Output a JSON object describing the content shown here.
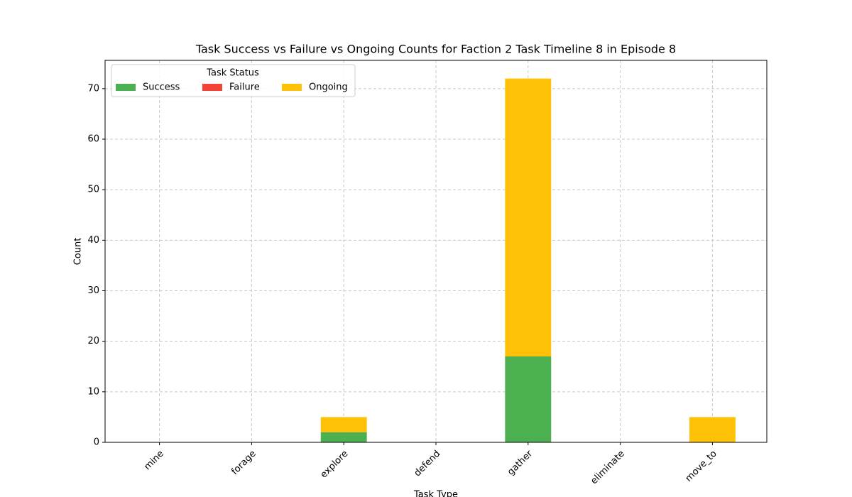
{
  "chart_data": {
    "type": "stacked_bar",
    "title": "Task Success vs Failure vs Ongoing Counts for Faction 2 Task Timeline 8 in Episode 8",
    "x_label": "Task Type",
    "y_label": "Count",
    "categories": [
      "mine",
      "forage",
      "explore",
      "defend",
      "gather",
      "eliminate",
      "move_to"
    ],
    "series": [
      {
        "name": "Success",
        "color": "#4caf50",
        "values": [
          0,
          0,
          2,
          0,
          17,
          0,
          0
        ]
      },
      {
        "name": "Failure",
        "color": "#f44336",
        "values": [
          0,
          0,
          0,
          0,
          0,
          0,
          0
        ]
      },
      {
        "name": "Ongoing",
        "color": "#ffc107",
        "values": [
          0,
          0,
          3,
          0,
          55,
          0,
          5
        ]
      }
    ],
    "ylim": [
      0,
      75.6
    ],
    "yticks": [
      0,
      10,
      20,
      30,
      40,
      50,
      60,
      70
    ],
    "grid": true,
    "legend_title": "Task Status",
    "legend_position": "upper-left"
  }
}
